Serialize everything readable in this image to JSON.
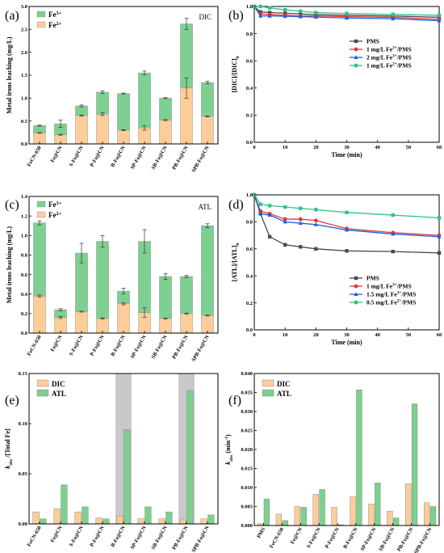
{
  "colors": {
    "fe3": "#7dd08f",
    "fe2": "#fccd99",
    "pms": "#4a4a4a",
    "fe3_1": "#e2383a",
    "fe3_2": "#1f5fdb",
    "fe2_1": "#2fc487",
    "dic_bar": "#fccd99",
    "atl_bar": "#7dd08f",
    "highlight": "#c8c8c8"
  },
  "chart_data": [
    {
      "id": "a",
      "panel_label": "(a)",
      "type": "bar",
      "stacked": true,
      "annotation": "DIC",
      "ylabel": "Metal irons leaching (mg/L)",
      "ylim": [
        0,
        3.0
      ],
      "yticks": [
        "0.0",
        "0.5",
        "1.0",
        "1.5",
        "2.0",
        "2.5",
        "3.0"
      ],
      "categories": [
        "FeCN-650",
        "Fe@CN",
        "S-Fe@CN",
        "P-Fe@CN",
        "B-Fe@CN",
        "SP-Fe@CN",
        "SB-Fe@CN",
        "PB-Fe@CN",
        "SPB-Fe@CN"
      ],
      "legend": [
        "Fe3+",
        "Fe2+"
      ],
      "series": [
        {
          "name": "Fe2+",
          "values": [
            0.24,
            0.2,
            0.62,
            0.65,
            0.3,
            0.35,
            0.52,
            1.22,
            0.6
          ],
          "errors": [
            0,
            0,
            0,
            0.03,
            0,
            0.05,
            0,
            0.22,
            0
          ]
        },
        {
          "name": "Fe3+",
          "values": [
            0.16,
            0.24,
            0.21,
            0.48,
            0.8,
            1.2,
            0.48,
            1.4,
            0.74
          ],
          "errors": [
            0,
            0.08,
            0.02,
            0.03,
            0,
            0.04,
            0.01,
            0.12,
            0.03
          ]
        }
      ]
    },
    {
      "id": "b",
      "panel_label": "(b)",
      "type": "line",
      "xlabel": "Time (min)",
      "ylabel": "[DIC]/[DIC]0",
      "xlim": [
        0,
        60
      ],
      "ylim": [
        0,
        1.0
      ],
      "xticks": [
        "0",
        "10",
        "20",
        "30",
        "40",
        "50",
        "60"
      ],
      "yticks": [
        "0.0",
        "0.2",
        "0.4",
        "0.6",
        "0.8",
        "1.0"
      ],
      "x": [
        0,
        2,
        5,
        10,
        15,
        20,
        30,
        45,
        60
      ],
      "series": [
        {
          "name": "PMS",
          "values": [
            1.0,
            0.96,
            0.955,
            0.95,
            0.945,
            0.94,
            0.935,
            0.93,
            0.92
          ],
          "marker": "square"
        },
        {
          "name": "1 mg/L Fe3+/PMS",
          "values": [
            1.0,
            0.945,
            0.94,
            0.935,
            0.93,
            0.93,
            0.925,
            0.92,
            0.905
          ],
          "marker": "circle"
        },
        {
          "name": "2 mg/L Fe3+/PMS",
          "values": [
            1.0,
            0.93,
            0.93,
            0.928,
            0.925,
            0.922,
            0.915,
            0.91,
            0.895
          ],
          "marker": "triangle"
        },
        {
          "name": "1 mg/L Fe2+/PMS",
          "values": [
            1.0,
            1.0,
            0.99,
            0.975,
            0.965,
            0.955,
            0.948,
            0.942,
            0.935
          ],
          "marker": "square"
        }
      ]
    },
    {
      "id": "c",
      "panel_label": "(c)",
      "type": "bar",
      "stacked": true,
      "annotation": "ATL",
      "ylabel": "Metal irons leaching (mg/L)",
      "ylim": [
        0,
        1.4
      ],
      "yticks": [
        "0.0",
        "0.2",
        "0.4",
        "0.6",
        "0.8",
        "1.0",
        "1.2",
        "1.4"
      ],
      "categories": [
        "FeCN-650",
        "Fe@CN",
        "S-Fe@CN",
        "P-Fe@CN",
        "B-Fe@CN",
        "SP-Fe@CN",
        "SB-Fe@CN",
        "PB-Fe@CN",
        "SPB-Fe@CN"
      ],
      "legend": [
        "Fe3+",
        "Fe2+"
      ],
      "series": [
        {
          "name": "Fe2+",
          "values": [
            0.38,
            0.16,
            0.22,
            0.15,
            0.3,
            0.21,
            0.15,
            0.2,
            0.18
          ],
          "errors": [
            0.01,
            0.01,
            0,
            0,
            0.01,
            0.05,
            0,
            0,
            0
          ]
        },
        {
          "name": "Fe3+",
          "values": [
            0.75,
            0.08,
            0.6,
            0.79,
            0.13,
            0.73,
            0.43,
            0.38,
            0.92
          ],
          "errors": [
            0.02,
            0.01,
            0.1,
            0.06,
            0.03,
            0.12,
            0.03,
            0.01,
            0.02
          ]
        }
      ]
    },
    {
      "id": "d",
      "panel_label": "(d)",
      "type": "line",
      "xlabel": "Time (min)",
      "ylabel": "[ATL]/[ATL]0",
      "xlim": [
        0,
        60
      ],
      "ylim": [
        0,
        1.0
      ],
      "xticks": [
        "0",
        "10",
        "20",
        "30",
        "40",
        "50",
        "60"
      ],
      "yticks": [
        "0.0",
        "0.2",
        "0.4",
        "0.6",
        "0.8",
        "1.0"
      ],
      "x": [
        0,
        2,
        5,
        10,
        15,
        20,
        30,
        45,
        60
      ],
      "series": [
        {
          "name": "PMS",
          "values": [
            1.0,
            0.86,
            0.69,
            0.63,
            0.615,
            0.6,
            0.585,
            0.58,
            0.57
          ],
          "marker": "square"
        },
        {
          "name": "1 mg/L Fe3+/PMS",
          "values": [
            1.0,
            0.88,
            0.86,
            0.82,
            0.82,
            0.81,
            0.75,
            0.72,
            0.7
          ],
          "marker": "circle"
        },
        {
          "name": "1.5 mg/L Fe3+/PMS",
          "values": [
            1.0,
            0.86,
            0.85,
            0.8,
            0.79,
            0.78,
            0.74,
            0.71,
            0.69
          ],
          "marker": "triangle"
        },
        {
          "name": "0.5 mg/L Fe2+/PMS",
          "values": [
            1.0,
            0.93,
            0.92,
            0.91,
            0.9,
            0.89,
            0.87,
            0.85,
            0.83
          ],
          "marker": "square"
        }
      ]
    },
    {
      "id": "e",
      "panel_label": "(e)",
      "type": "bar",
      "grouped": true,
      "ylabel": "kobs /[Total Fe]",
      "ylim": [
        0,
        0.15
      ],
      "yticks": [
        "0.00",
        "0.05",
        "0.10",
        "0.15"
      ],
      "categories": [
        "FeCN-650",
        "Fe@CN",
        "S-Fe@CN",
        "P-Fe@CN",
        "B-Fe@CN",
        "SP-Fe@CN",
        "SB-Fe@CN",
        "PB-Fe@CN",
        "SPB-Fe@CN"
      ],
      "highlighted": [
        "B-Fe@CN",
        "PB-Fe@CN"
      ],
      "series": [
        {
          "name": "DIC",
          "values": [
            0.012,
            0.015,
            0.012,
            0.006,
            0.008,
            0.005,
            0.005,
            0.004,
            0.005
          ],
          "errors": [
            0.001,
            0,
            0.001,
            0,
            0,
            0,
            0,
            0,
            0
          ]
        },
        {
          "name": "ATL",
          "values": [
            0.005,
            0.039,
            0.017,
            0.005,
            0.094,
            0.017,
            0.012,
            0.133,
            0.009
          ],
          "errors": [
            0,
            0,
            0,
            0,
            0,
            0,
            0,
            0,
            0
          ]
        }
      ]
    },
    {
      "id": "f",
      "panel_label": "(f)",
      "type": "bar",
      "grouped": true,
      "ylabel": "kobs (min-1)",
      "ylim": [
        0,
        0.04
      ],
      "yticks": [
        "0.000",
        "0.005",
        "0.010",
        "0.015",
        "0.020",
        "0.025",
        "0.030",
        "0.035",
        "0.040"
      ],
      "categories": [
        "PMS",
        "FeCN-650",
        "Fe@CN",
        "S-Fe@CN",
        "P-Fe@CN",
        "B-Fe@CN",
        "SP-Fe@CN",
        "SB-Fe@CN",
        "PB-Fe@CN",
        "SPB-Fe@CN"
      ],
      "series": [
        {
          "name": "DIC",
          "values": [
            0.0005,
            0.003,
            0.005,
            0.0082,
            0.0048,
            0.0075,
            0.0057,
            0.0038,
            0.011,
            0.006
          ]
        },
        {
          "name": "ATL",
          "values": [
            0.007,
            0.0013,
            0.0048,
            0.0095,
            0.0002,
            0.0357,
            0.0112,
            0.002,
            0.032,
            0.005
          ]
        }
      ]
    }
  ]
}
